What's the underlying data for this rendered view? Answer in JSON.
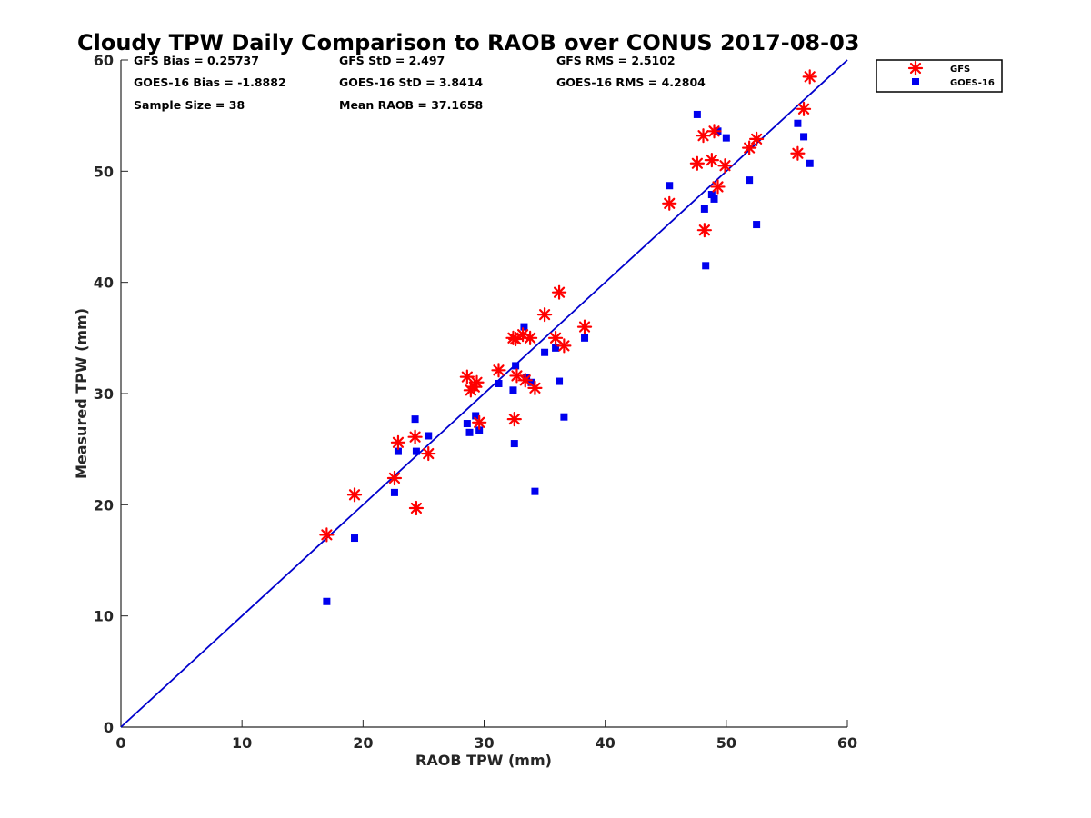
{
  "chart_data": {
    "type": "scatter",
    "title": "Cloudy TPW Daily Comparison to RAOB over CONUS 2017-08-03",
    "xlabel": "RAOB TPW (mm)",
    "ylabel": "Measured TPW (mm)",
    "xlim": [
      0,
      60
    ],
    "ylim": [
      0,
      60
    ],
    "xticks": [
      0,
      10,
      20,
      30,
      40,
      50,
      60
    ],
    "yticks": [
      0,
      10,
      20,
      30,
      40,
      50,
      60
    ],
    "grid": false,
    "legend_position": "outside top-right",
    "reference_line": {
      "x": [
        0,
        60
      ],
      "y": [
        0,
        60
      ],
      "color": "#0000cc"
    },
    "stats": [
      {
        "text": "GFS Bias = 0.25737"
      },
      {
        "text": "GFS StD = 2.497"
      },
      {
        "text": "GFS RMS = 2.5102"
      },
      {
        "text": "GOES-16 Bias = -1.8882"
      },
      {
        "text": "GOES-16 StD = 3.8414"
      },
      {
        "text": "GOES-16 RMS = 4.2804"
      },
      {
        "text": "Sample Size = 38"
      },
      {
        "text": "Mean RAOB = 37.1658"
      }
    ],
    "series": [
      {
        "name": "GFS",
        "marker": "asterisk",
        "color": "#ff0000",
        "points": [
          [
            17.0,
            17.3
          ],
          [
            19.3,
            20.9
          ],
          [
            22.6,
            22.4
          ],
          [
            22.9,
            25.6
          ],
          [
            24.3,
            26.1
          ],
          [
            24.4,
            19.7
          ],
          [
            25.4,
            24.6
          ],
          [
            28.6,
            31.5
          ],
          [
            28.9,
            30.3
          ],
          [
            29.2,
            30.6
          ],
          [
            29.4,
            31.0
          ],
          [
            29.6,
            27.4
          ],
          [
            31.2,
            32.1
          ],
          [
            32.4,
            35.0
          ],
          [
            32.5,
            27.7
          ],
          [
            32.6,
            34.9
          ],
          [
            32.7,
            31.6
          ],
          [
            33.2,
            35.3
          ],
          [
            33.4,
            31.2
          ],
          [
            33.8,
            35.0
          ],
          [
            34.2,
            30.5
          ],
          [
            35.0,
            37.1
          ],
          [
            35.9,
            35.0
          ],
          [
            36.2,
            39.1
          ],
          [
            36.6,
            34.3
          ],
          [
            38.3,
            36.0
          ],
          [
            45.3,
            47.1
          ],
          [
            47.6,
            50.7
          ],
          [
            48.1,
            53.2
          ],
          [
            48.2,
            44.7
          ],
          [
            48.8,
            51.0
          ],
          [
            49.0,
            53.6
          ],
          [
            49.3,
            48.6
          ],
          [
            49.9,
            50.5
          ],
          [
            51.9,
            52.1
          ],
          [
            52.5,
            52.9
          ],
          [
            55.9,
            51.6
          ],
          [
            56.4,
            55.6
          ],
          [
            56.9,
            58.5
          ]
        ]
      },
      {
        "name": "GOES-16",
        "marker": "square",
        "color": "#0000ee",
        "points": [
          [
            17.0,
            11.3
          ],
          [
            19.3,
            17.0
          ],
          [
            22.6,
            21.1
          ],
          [
            22.9,
            24.8
          ],
          [
            24.3,
            27.7
          ],
          [
            24.4,
            24.8
          ],
          [
            25.4,
            26.2
          ],
          [
            28.6,
            27.3
          ],
          [
            28.8,
            26.5
          ],
          [
            29.3,
            28.0
          ],
          [
            29.6,
            26.7
          ],
          [
            31.2,
            30.9
          ],
          [
            32.4,
            30.3
          ],
          [
            32.5,
            25.5
          ],
          [
            32.6,
            32.5
          ],
          [
            33.3,
            36.0
          ],
          [
            33.5,
            31.4
          ],
          [
            33.9,
            31.0
          ],
          [
            34.2,
            21.2
          ],
          [
            35.0,
            33.7
          ],
          [
            35.9,
            34.1
          ],
          [
            36.2,
            31.1
          ],
          [
            36.6,
            27.9
          ],
          [
            38.3,
            35.0
          ],
          [
            45.3,
            48.7
          ],
          [
            47.6,
            55.1
          ],
          [
            48.2,
            46.6
          ],
          [
            48.3,
            41.5
          ],
          [
            48.8,
            47.9
          ],
          [
            49.0,
            47.5
          ],
          [
            49.3,
            53.6
          ],
          [
            50.0,
            53.0
          ],
          [
            51.9,
            49.2
          ],
          [
            52.5,
            45.2
          ],
          [
            55.9,
            54.3
          ],
          [
            56.4,
            53.1
          ],
          [
            56.9,
            50.7
          ]
        ]
      }
    ]
  }
}
